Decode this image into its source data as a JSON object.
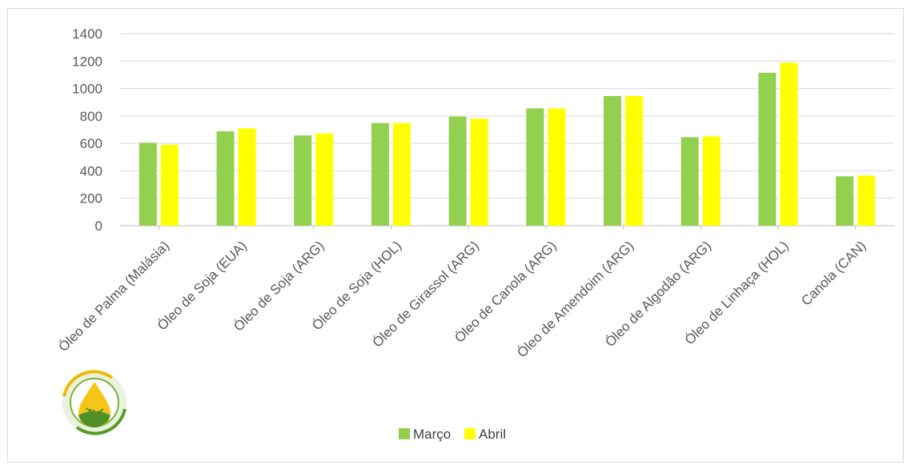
{
  "chart_data": {
    "type": "bar",
    "categories": [
      "Óleo de Palma (Malásia)",
      "Óleo de Soja (EUA)",
      "Óleo de Soja (ARG)",
      "Óleo de Soja (HOL)",
      "Óleo de Girassol (ARG)",
      "Óleo de Canola (ARG)",
      "Óleo de Amendoim (ARG)",
      "Óleo de Algodão (ARG)",
      "Óleo de Linhaça (HOL)",
      "Canola (CAN)"
    ],
    "series": [
      {
        "name": "Março",
        "color": "#92d050",
        "values": [
          605,
          688,
          658,
          748,
          795,
          855,
          945,
          645,
          1115,
          360
        ]
      },
      {
        "name": "Abril",
        "color": "#ffff00",
        "values": [
          590,
          710,
          672,
          748,
          780,
          855,
          945,
          652,
          1188,
          365
        ]
      }
    ],
    "ylim": [
      0,
      1400
    ],
    "yticks": [
      0,
      200,
      400,
      600,
      800,
      1000,
      1200,
      1400
    ],
    "grid": true,
    "legend": "bottom",
    "title": "",
    "xlabel": "",
    "ylabel": ""
  },
  "logo": {
    "icon": "oil-drop-leaf-logo-icon"
  }
}
